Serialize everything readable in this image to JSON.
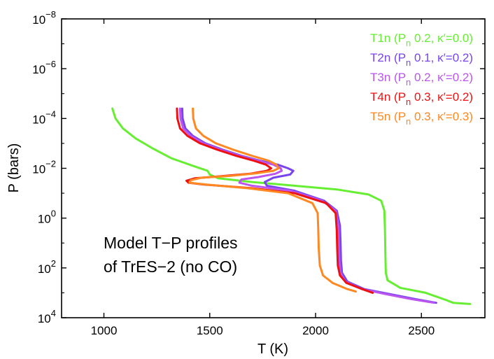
{
  "chart_data": {
    "type": "line",
    "title": "",
    "xlabel": "T (K)",
    "ylabel": "P (bars)",
    "xlim": [
      800,
      2800
    ],
    "ylim_log10": [
      -8,
      4
    ],
    "y_inverted": true,
    "y_scale": "log",
    "x_ticks": [
      1000,
      1500,
      2000,
      2500
    ],
    "x_tick_labels": [
      "1000",
      "1500",
      "2000",
      "2500"
    ],
    "y_ticks_log10": [
      -8,
      -6,
      -4,
      -2,
      0,
      2,
      4
    ],
    "y_tick_labels": [
      {
        "base": "10",
        "exp": "−8"
      },
      {
        "base": "10",
        "exp": "−6"
      },
      {
        "base": "10",
        "exp": "−4"
      },
      {
        "base": "10",
        "exp": "−2"
      },
      {
        "base": "10",
        "exp": "0"
      },
      {
        "base": "10",
        "exp": "2"
      },
      {
        "base": "10",
        "exp": "4"
      }
    ],
    "legend_position": "top-right",
    "annotation": [
      "Model T−P profiles",
      "of TrES−2 (no CO)"
    ],
    "series": [
      {
        "name": "T1n",
        "legend": {
          "pre": "T1n (P",
          "sub": "n",
          "post": " 0.2, κ′=0.0)"
        },
        "color": "#66ee33",
        "points_logP": [
          [
            1040,
            -4.4
          ],
          [
            1055,
            -4.0
          ],
          [
            1090,
            -3.6
          ],
          [
            1150,
            -3.2
          ],
          [
            1230,
            -2.8
          ],
          [
            1320,
            -2.4
          ],
          [
            1420,
            -2.1
          ],
          [
            1490,
            -1.9
          ],
          [
            1500,
            -1.75
          ],
          [
            1540,
            -1.6
          ],
          [
            1700,
            -1.45
          ],
          [
            1900,
            -1.3
          ],
          [
            2100,
            -1.15
          ],
          [
            2250,
            -0.95
          ],
          [
            2310,
            -0.7
          ],
          [
            2325,
            -0.3
          ],
          [
            2328,
            0.5
          ],
          [
            2330,
            1.5
          ],
          [
            2332,
            2.2
          ],
          [
            2340,
            2.5
          ],
          [
            2400,
            2.8
          ],
          [
            2520,
            3.0
          ],
          [
            2620,
            3.3
          ],
          [
            2650,
            3.4
          ],
          [
            2730,
            3.45
          ]
        ]
      },
      {
        "name": "T2n",
        "legend": {
          "pre": "T2n (P",
          "sub": "n",
          "post": " 0.1, κ′=0.2)"
        },
        "color": "#7744ee",
        "points_logP": [
          [
            1370,
            -4.4
          ],
          [
            1372,
            -4.0
          ],
          [
            1385,
            -3.6
          ],
          [
            1420,
            -3.3
          ],
          [
            1480,
            -3.0
          ],
          [
            1560,
            -2.75
          ],
          [
            1650,
            -2.5
          ],
          [
            1740,
            -2.3
          ],
          [
            1820,
            -2.15
          ],
          [
            1870,
            -2.0
          ],
          [
            1895,
            -1.9
          ],
          [
            1880,
            -1.75
          ],
          [
            1800,
            -1.62
          ],
          [
            1760,
            -1.45
          ],
          [
            1770,
            -1.3
          ],
          [
            1900,
            -1.1
          ],
          [
            2040,
            -0.7
          ],
          [
            2100,
            -0.3
          ],
          [
            2115,
            0.3
          ],
          [
            2118,
            1.0
          ],
          [
            2120,
            1.7
          ],
          [
            2125,
            2.2
          ],
          [
            2150,
            2.55
          ],
          [
            2230,
            2.85
          ],
          [
            2350,
            3.05
          ],
          [
            2470,
            3.25
          ],
          [
            2570,
            3.4
          ]
        ]
      },
      {
        "name": "T3n",
        "legend": {
          "pre": "T3n (P",
          "sub": "n",
          "post": " 0.2, κ′=0.2)"
        },
        "color": "#bb55ee",
        "points_logP": [
          [
            1360,
            -4.4
          ],
          [
            1362,
            -4.0
          ],
          [
            1375,
            -3.6
          ],
          [
            1410,
            -3.3
          ],
          [
            1470,
            -3.0
          ],
          [
            1550,
            -2.75
          ],
          [
            1640,
            -2.5
          ],
          [
            1730,
            -2.3
          ],
          [
            1800,
            -2.15
          ],
          [
            1835,
            -2.0
          ],
          [
            1840,
            -1.9
          ],
          [
            1810,
            -1.78
          ],
          [
            1730,
            -1.65
          ],
          [
            1650,
            -1.55
          ],
          [
            1640,
            -1.42
          ],
          [
            1700,
            -1.3
          ],
          [
            1880,
            -1.1
          ],
          [
            2030,
            -0.7
          ],
          [
            2095,
            -0.3
          ],
          [
            2108,
            0.3
          ],
          [
            2110,
            1.0
          ],
          [
            2112,
            1.7
          ],
          [
            2118,
            2.2
          ],
          [
            2140,
            2.55
          ],
          [
            2220,
            2.85
          ],
          [
            2330,
            3.05
          ],
          [
            2450,
            3.25
          ],
          [
            2560,
            3.4
          ]
        ]
      },
      {
        "name": "T4n",
        "legend": {
          "pre": "T4n (P",
          "sub": "n",
          "post": " 0.3, κ′=0.2)"
        },
        "color": "#ee1111",
        "points_logP": [
          [
            1345,
            -4.4
          ],
          [
            1347,
            -4.0
          ],
          [
            1360,
            -3.6
          ],
          [
            1395,
            -3.3
          ],
          [
            1455,
            -3.0
          ],
          [
            1535,
            -2.75
          ],
          [
            1625,
            -2.5
          ],
          [
            1710,
            -2.3
          ],
          [
            1765,
            -2.15
          ],
          [
            1790,
            -2.0
          ],
          [
            1770,
            -1.9
          ],
          [
            1690,
            -1.78
          ],
          [
            1550,
            -1.68
          ],
          [
            1430,
            -1.6
          ],
          [
            1390,
            -1.5
          ],
          [
            1400,
            -1.42
          ],
          [
            1470,
            -1.35
          ],
          [
            1700,
            -1.2
          ],
          [
            1900,
            -1.0
          ],
          [
            2050,
            -0.6
          ],
          [
            2095,
            -0.2
          ],
          [
            2100,
            0.5
          ],
          [
            2102,
            1.2
          ],
          [
            2105,
            1.9
          ],
          [
            2115,
            2.3
          ],
          [
            2145,
            2.6
          ],
          [
            2220,
            2.85
          ],
          [
            2270,
            3.0
          ]
        ]
      },
      {
        "name": "T5n",
        "legend": {
          "pre": "T5n (P",
          "sub": "n",
          "post": " 0.3, κ′=0.3)"
        },
        "color": "#ff8822",
        "points_logP": [
          [
            1420,
            -4.4
          ],
          [
            1422,
            -4.0
          ],
          [
            1435,
            -3.6
          ],
          [
            1470,
            -3.3
          ],
          [
            1530,
            -3.0
          ],
          [
            1610,
            -2.75
          ],
          [
            1700,
            -2.5
          ],
          [
            1780,
            -2.3
          ],
          [
            1815,
            -2.15
          ],
          [
            1825,
            -2.0
          ],
          [
            1800,
            -1.9
          ],
          [
            1720,
            -1.8
          ],
          [
            1600,
            -1.7
          ],
          [
            1460,
            -1.62
          ],
          [
            1410,
            -1.52
          ],
          [
            1405,
            -1.42
          ],
          [
            1480,
            -1.35
          ],
          [
            1680,
            -1.2
          ],
          [
            1870,
            -1.0
          ],
          [
            1985,
            -0.6
          ],
          [
            2010,
            -0.2
          ],
          [
            2013,
            0.5
          ],
          [
            2015,
            1.2
          ],
          [
            2020,
            1.9
          ],
          [
            2035,
            2.3
          ],
          [
            2080,
            2.6
          ],
          [
            2150,
            2.85
          ],
          [
            2190,
            2.95
          ]
        ]
      }
    ]
  }
}
